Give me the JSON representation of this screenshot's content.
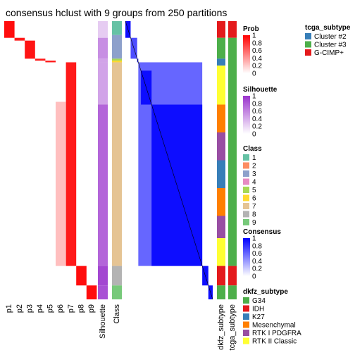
{
  "chart_data": {
    "type": "heatmap",
    "title": "consensus hclust with 9 groups from 250 partitions",
    "membership_columns": [
      "p1",
      "p2",
      "p3",
      "p4",
      "p5",
      "p6",
      "p7",
      "p8",
      "p9"
    ],
    "silhouette_label": "Silhouette",
    "class_label": "Class",
    "annotation_columns": [
      "dkfz_subtype",
      "tcga_subtype"
    ],
    "class_colors": {
      "1": "#66C2A5",
      "2": "#FC8D62",
      "3": "#8DA0CB",
      "4": "#E78AC3",
      "5": "#A6D854",
      "6": "#FFD92F",
      "7": "#E5C494",
      "8": "#B3B3B3",
      "9": "#77C97A"
    },
    "class_segments": [
      {
        "class": "1",
        "from": 0.0,
        "to": 0.05
      },
      {
        "class": "3",
        "from": 0.05,
        "to": 0.135
      },
      {
        "class": "5",
        "from": 0.135,
        "to": 0.142
      },
      {
        "class": "6",
        "from": 0.142,
        "to": 0.148
      },
      {
        "class": "7",
        "from": 0.148,
        "to": 0.88
      },
      {
        "class": "8",
        "from": 0.88,
        "to": 0.95
      },
      {
        "class": "9",
        "from": 0.95,
        "to": 1.0
      }
    ],
    "membership_segments": [
      {
        "column": 0,
        "from": 0.0,
        "to": 0.06,
        "value": 0.95
      },
      {
        "column": 1,
        "from": 0.06,
        "to": 0.07,
        "value": 0.9
      },
      {
        "column": 2,
        "from": 0.07,
        "to": 0.135,
        "value": 0.92
      },
      {
        "column": 3,
        "from": 0.135,
        "to": 0.142,
        "value": 0.9
      },
      {
        "column": 4,
        "from": 0.142,
        "to": 0.148,
        "value": 0.9
      },
      {
        "column": 6,
        "from": 0.148,
        "to": 0.88,
        "value": 0.9
      },
      {
        "column": 7,
        "from": 0.88,
        "to": 0.95,
        "value": 0.95
      },
      {
        "column": 8,
        "from": 0.95,
        "to": 1.0,
        "value": 0.95
      }
    ],
    "silhouette_segments": [
      {
        "from": 0.0,
        "to": 0.06,
        "value": 0.25
      },
      {
        "from": 0.06,
        "to": 0.135,
        "value": 0.55
      },
      {
        "from": 0.135,
        "to": 0.148,
        "value": 0.45
      },
      {
        "from": 0.148,
        "to": 0.3,
        "value": 0.45
      },
      {
        "from": 0.3,
        "to": 0.88,
        "value": 0.75
      },
      {
        "from": 0.88,
        "to": 0.95,
        "value": 0.9
      },
      {
        "from": 0.95,
        "to": 1.0,
        "value": 0.85
      }
    ],
    "consensus_blocks": [
      {
        "from": 0.0,
        "to": 0.06,
        "value": 0.95
      },
      {
        "from": 0.06,
        "to": 0.135,
        "value": 0.7
      },
      {
        "from": 0.135,
        "to": 0.148,
        "value": 0.9
      },
      {
        "from": 0.148,
        "to": 0.88,
        "value": 0.6
      },
      {
        "from": 0.178,
        "to": 0.3,
        "value": 0.95
      },
      {
        "from": 0.3,
        "to": 0.88,
        "value": 0.95
      },
      {
        "from": 0.88,
        "to": 0.95,
        "value": 0.95
      },
      {
        "from": 0.95,
        "to": 1.0,
        "value": 0.95
      }
    ],
    "dkfz_segments": [
      {
        "from": 0.0,
        "to": 0.06,
        "label": "IDH"
      },
      {
        "from": 0.06,
        "to": 0.135,
        "label": "G34"
      },
      {
        "from": 0.135,
        "to": 0.16,
        "label": "K27"
      },
      {
        "from": 0.16,
        "to": 0.3,
        "label": "RTK II Classic"
      },
      {
        "from": 0.3,
        "to": 0.4,
        "label": "Mesenchymal"
      },
      {
        "from": 0.4,
        "to": 0.5,
        "label": "RTK I PDGFRA"
      },
      {
        "from": 0.5,
        "to": 0.6,
        "label": "K27"
      },
      {
        "from": 0.6,
        "to": 0.7,
        "label": "Mesenchymal"
      },
      {
        "from": 0.7,
        "to": 0.78,
        "label": "RTK I PDGFRA"
      },
      {
        "from": 0.78,
        "to": 0.88,
        "label": "RTK II Classic"
      },
      {
        "from": 0.88,
        "to": 0.95,
        "label": "IDH"
      },
      {
        "from": 0.95,
        "to": 1.0,
        "label": "G34"
      }
    ],
    "tcga_segments": [
      {
        "from": 0.0,
        "to": 0.06,
        "label": "G-CIMP+"
      },
      {
        "from": 0.06,
        "to": 0.88,
        "label": "Cluster #3"
      },
      {
        "from": 0.88,
        "to": 0.95,
        "label": "G-CIMP+"
      },
      {
        "from": 0.95,
        "to": 1.0,
        "label": "Cluster #3"
      }
    ],
    "legends": {
      "tcga_subtype": {
        "title": "tcga_subtype",
        "items": [
          {
            "label": "Cluster #2",
            "color": "#377EB8"
          },
          {
            "label": "Cluster #3",
            "color": "#4DAF4A"
          },
          {
            "label": "G-CIMP+",
            "color": "#E41A1C"
          }
        ]
      },
      "prob": {
        "title": "Prob",
        "ticks": [
          "1",
          "0.8",
          "0.6",
          "0.4",
          "0.2",
          "0"
        ],
        "color_low": "#ffffff",
        "color_high": "#ff0000"
      },
      "silhouette": {
        "title": "Silhouette",
        "ticks": [
          "1",
          "0.8",
          "0.6",
          "0.4",
          "0.2",
          "0"
        ],
        "color_low": "#ffffff",
        "color_high": "#9932cc"
      },
      "class": {
        "title": "Class",
        "items": [
          "1",
          "2",
          "3",
          "4",
          "5",
          "6",
          "7",
          "8",
          "9"
        ]
      },
      "consensus": {
        "title": "Consensus",
        "ticks": [
          "1",
          "0.8",
          "0.6",
          "0.4",
          "0.2",
          "0"
        ],
        "color_low": "#ffffff",
        "color_high": "#0000ff"
      },
      "dkfz_subtype": {
        "title": "dkfz_subtype",
        "items": [
          {
            "label": "G34",
            "color": "#4DAF4A"
          },
          {
            "label": "IDH",
            "color": "#E41A1C"
          },
          {
            "label": "K27",
            "color": "#377EB8"
          },
          {
            "label": "Mesenchymal",
            "color": "#FF7F00"
          },
          {
            "label": "RTK I PDGFRA",
            "color": "#984EA3"
          },
          {
            "label": "RTK II Classic",
            "color": "#FFFF33"
          }
        ]
      }
    }
  }
}
